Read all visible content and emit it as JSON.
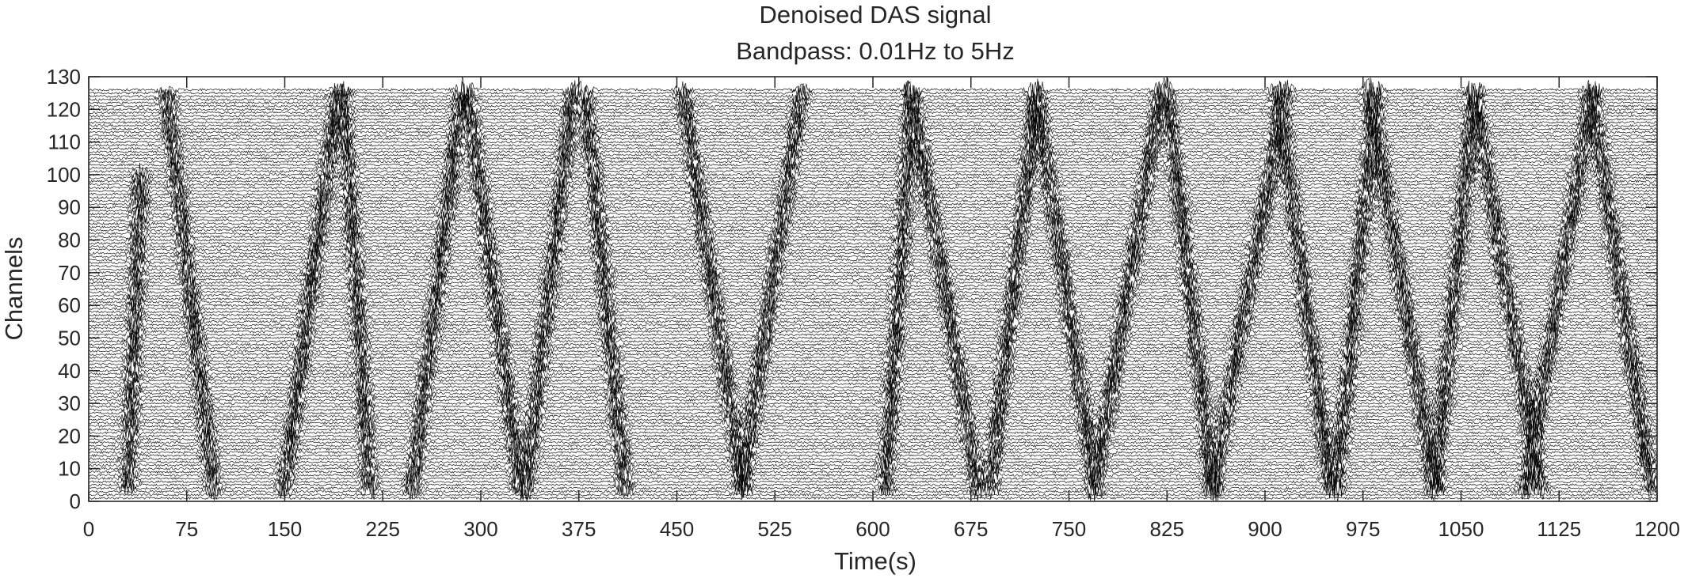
{
  "chart_data": {
    "type": "wiggle-trace",
    "title": "Denoised DAS signal",
    "subtitle": "Bandpass: 0.01Hz to 5Hz",
    "xlabel": "Time(s)",
    "ylabel": "Channels",
    "xlim": [
      0,
      1200
    ],
    "ylim": [
      0,
      130
    ],
    "xticks": [
      0,
      75,
      150,
      225,
      300,
      375,
      450,
      525,
      600,
      675,
      750,
      825,
      900,
      975,
      1050,
      1125,
      1200
    ],
    "yticks": [
      0,
      10,
      20,
      30,
      40,
      50,
      60,
      70,
      80,
      90,
      100,
      110,
      120,
      130
    ],
    "channel_count": 126,
    "trace_color": "#000000",
    "grid": false,
    "moveouts": [
      {
        "channel_start": 5,
        "channel_end": 100,
        "time_start": 30,
        "time_end": 40
      },
      {
        "channel_start": 124,
        "channel_end": 5,
        "time_start": 60,
        "time_end": 95
      },
      {
        "channel_start": 5,
        "channel_end": 124,
        "time_start": 150,
        "time_end": 190
      },
      {
        "channel_start": 124,
        "channel_end": 5,
        "time_start": 195,
        "time_end": 215
      },
      {
        "channel_start": 5,
        "channel_end": 124,
        "time_start": 248,
        "time_end": 285
      },
      {
        "channel_start": 124,
        "channel_end": 5,
        "time_start": 290,
        "time_end": 330
      },
      {
        "channel_start": 5,
        "channel_end": 124,
        "time_start": 335,
        "time_end": 370
      },
      {
        "channel_start": 124,
        "channel_end": 5,
        "time_start": 380,
        "time_end": 410
      },
      {
        "channel_start": 124,
        "channel_end": 5,
        "time_start": 455,
        "time_end": 500
      },
      {
        "channel_start": 5,
        "channel_end": 124,
        "time_start": 500,
        "time_end": 545
      },
      {
        "channel_start": 5,
        "channel_end": 124,
        "time_start": 610,
        "time_end": 630
      },
      {
        "channel_start": 124,
        "channel_end": 5,
        "time_start": 630,
        "time_end": 680
      },
      {
        "channel_start": 5,
        "channel_end": 124,
        "time_start": 690,
        "time_end": 725
      },
      {
        "channel_start": 124,
        "channel_end": 5,
        "time_start": 725,
        "time_end": 770
      },
      {
        "channel_start": 5,
        "channel_end": 124,
        "time_start": 770,
        "time_end": 820
      },
      {
        "channel_start": 124,
        "channel_end": 5,
        "time_start": 825,
        "time_end": 860
      },
      {
        "channel_start": 5,
        "channel_end": 124,
        "time_start": 860,
        "time_end": 915
      },
      {
        "channel_start": 124,
        "channel_end": 5,
        "time_start": 910,
        "time_end": 950
      },
      {
        "channel_start": 5,
        "channel_end": 124,
        "time_start": 955,
        "time_end": 985
      },
      {
        "channel_start": 124,
        "channel_end": 5,
        "time_start": 980,
        "time_end": 1030
      },
      {
        "channel_start": 5,
        "channel_end": 124,
        "time_start": 1030,
        "time_end": 1060
      },
      {
        "channel_start": 124,
        "channel_end": 5,
        "time_start": 1060,
        "time_end": 1110
      },
      {
        "channel_start": 5,
        "channel_end": 124,
        "time_start": 1100,
        "time_end": 1150
      },
      {
        "channel_start": 124,
        "channel_end": 5,
        "time_start": 1150,
        "time_end": 1195
      }
    ]
  }
}
